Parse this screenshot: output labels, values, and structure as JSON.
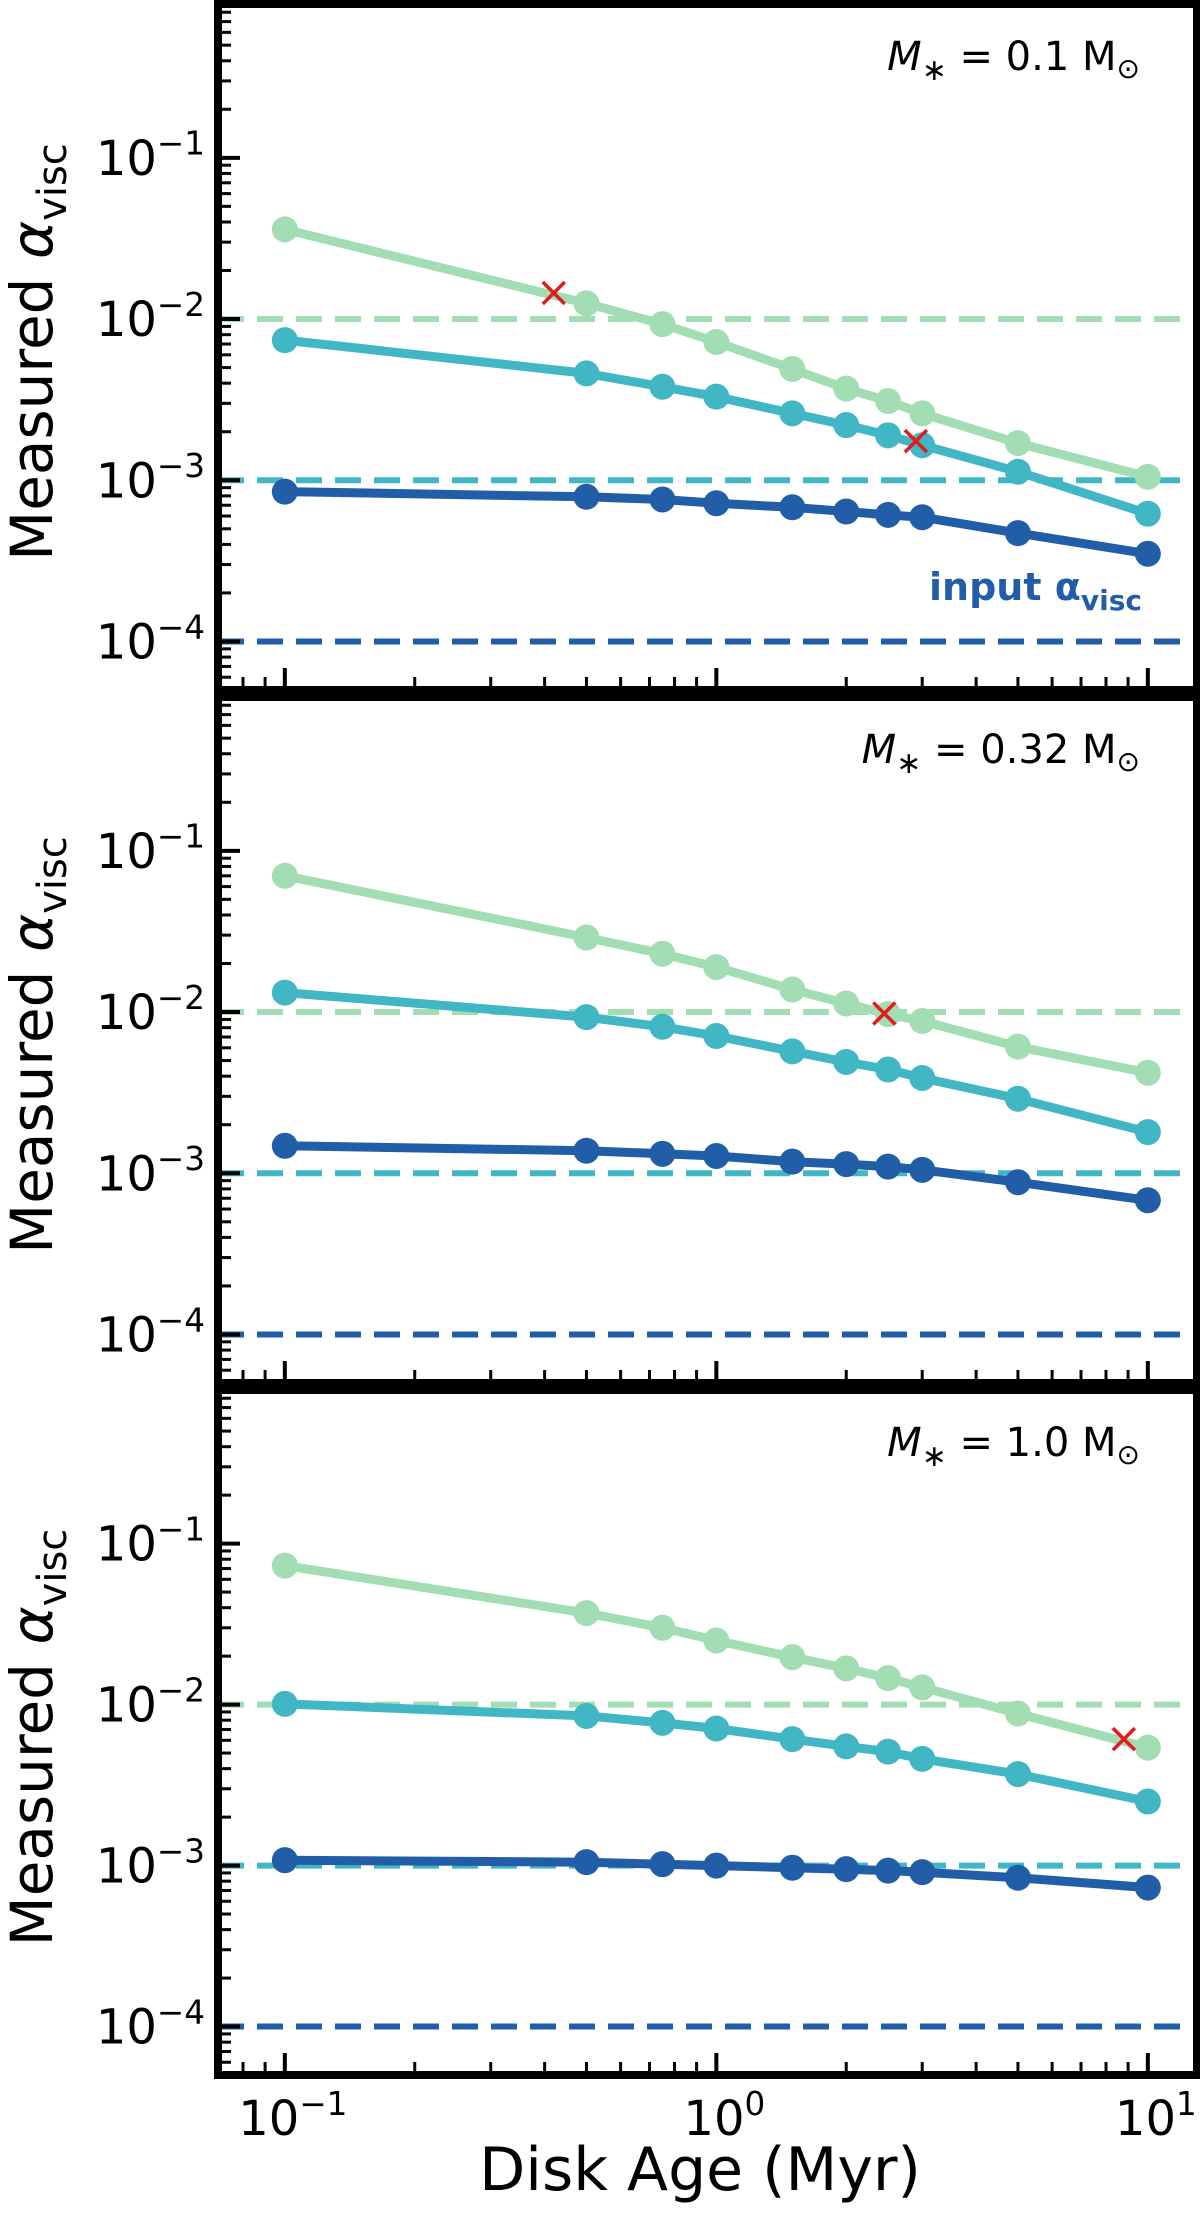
{
  "figure": {
    "xlabel": "Disk Age (Myr)",
    "ylabel_main": "Measured ",
    "ylabel_alpha": "α",
    "ylabel_sub": "visc",
    "input_label_main": "input α",
    "input_label_sub": "visc",
    "x_tick_labels": [
      {
        "base": "10",
        "exp": "−1"
      },
      {
        "base": "10",
        "exp": "0"
      },
      {
        "base": "10",
        "exp": "1"
      }
    ],
    "y_tick_labels": [
      {
        "base": "10",
        "exp": "−1"
      },
      {
        "base": "10",
        "exp": "−2"
      },
      {
        "base": "10",
        "exp": "−3"
      },
      {
        "base": "10",
        "exp": "−4"
      }
    ],
    "colors": {
      "high": "#a2ddb4",
      "mid": "#41b6c4",
      "low": "#225ea8",
      "cross": "#e41a1c",
      "axes": "#000000"
    }
  },
  "chart_data": [
    {
      "type": "line",
      "label_main": "M",
      "label_sub": "∗",
      "label_rest": " = 0.1 M",
      "label_sun": "⊙",
      "xscale": "log",
      "yscale": "log",
      "xlim": [
        0.07,
        13
      ],
      "ylim": [
        5e-05,
        0.9
      ],
      "x": [
        0.1,
        0.5,
        0.75,
        1.0,
        1.5,
        2.0,
        2.5,
        3.0,
        5.0,
        10.0
      ],
      "series": [
        {
          "color_key": "high",
          "y": [
            0.036,
            0.0125,
            0.0093,
            0.0072,
            0.0049,
            0.0037,
            0.0031,
            0.0026,
            0.0017,
            0.00105
          ],
          "input": 0.01
        },
        {
          "color_key": "mid",
          "y": [
            0.0074,
            0.0046,
            0.0038,
            0.0033,
            0.0026,
            0.0022,
            0.0019,
            0.00165,
            0.00113,
            0.00062
          ],
          "input": 0.001
        },
        {
          "color_key": "low",
          "y": [
            0.00085,
            0.00079,
            0.00076,
            0.00072,
            0.00068,
            0.00064,
            0.00061,
            0.00059,
            0.00047,
            0.00035
          ],
          "input": 0.0001
        }
      ],
      "crosses": [
        {
          "x": 0.42,
          "y": 0.0145
        },
        {
          "x": 2.9,
          "y": 0.00175
        }
      ],
      "show_input_label": true
    },
    {
      "type": "line",
      "label_main": "M",
      "label_sub": "∗",
      "label_rest": " = 0.32 M",
      "label_sun": "⊙",
      "xscale": "log",
      "yscale": "log",
      "xlim": [
        0.07,
        13
      ],
      "ylim": [
        5e-05,
        0.9
      ],
      "x": [
        0.1,
        0.5,
        0.75,
        1.0,
        1.5,
        2.0,
        2.5,
        3.0,
        5.0,
        10.0
      ],
      "series": [
        {
          "color_key": "high",
          "y": [
            0.07,
            0.029,
            0.023,
            0.019,
            0.0138,
            0.0113,
            0.0097,
            0.0088,
            0.0061,
            0.0042
          ],
          "input": 0.01
        },
        {
          "color_key": "mid",
          "y": [
            0.0132,
            0.0093,
            0.0081,
            0.0071,
            0.0057,
            0.0049,
            0.0044,
            0.0039,
            0.0029,
            0.0018
          ],
          "input": 0.001
        },
        {
          "color_key": "low",
          "y": [
            0.00148,
            0.00138,
            0.00132,
            0.00128,
            0.00118,
            0.00114,
            0.0011,
            0.00105,
            0.00088,
            0.00068
          ],
          "input": 0.0001
        }
      ],
      "crosses": [
        {
          "x": 2.45,
          "y": 0.0098
        }
      ],
      "show_input_label": false
    },
    {
      "type": "line",
      "label_main": "M",
      "label_sub": "∗",
      "label_rest": " = 1.0 M",
      "label_sun": "⊙",
      "xscale": "log",
      "yscale": "log",
      "xlim": [
        0.07,
        13
      ],
      "ylim": [
        5e-05,
        0.9
      ],
      "x": [
        0.1,
        0.5,
        0.75,
        1.0,
        1.5,
        2.0,
        2.5,
        3.0,
        5.0,
        10.0
      ],
      "series": [
        {
          "color_key": "high",
          "y": [
            0.073,
            0.037,
            0.03,
            0.025,
            0.0197,
            0.0168,
            0.0146,
            0.0128,
            0.0088,
            0.0054
          ],
          "input": 0.01
        },
        {
          "color_key": "mid",
          "y": [
            0.0101,
            0.0085,
            0.0077,
            0.0071,
            0.0061,
            0.0055,
            0.0051,
            0.0046,
            0.0037,
            0.0025
          ],
          "input": 0.001
        },
        {
          "color_key": "low",
          "y": [
            0.00108,
            0.00105,
            0.00102,
            0.001,
            0.00097,
            0.00095,
            0.00093,
            0.00091,
            0.00084,
            0.00073
          ],
          "input": 0.0001
        }
      ],
      "crosses": [
        {
          "x": 8.8,
          "y": 0.0061
        }
      ],
      "show_input_label": false
    }
  ]
}
